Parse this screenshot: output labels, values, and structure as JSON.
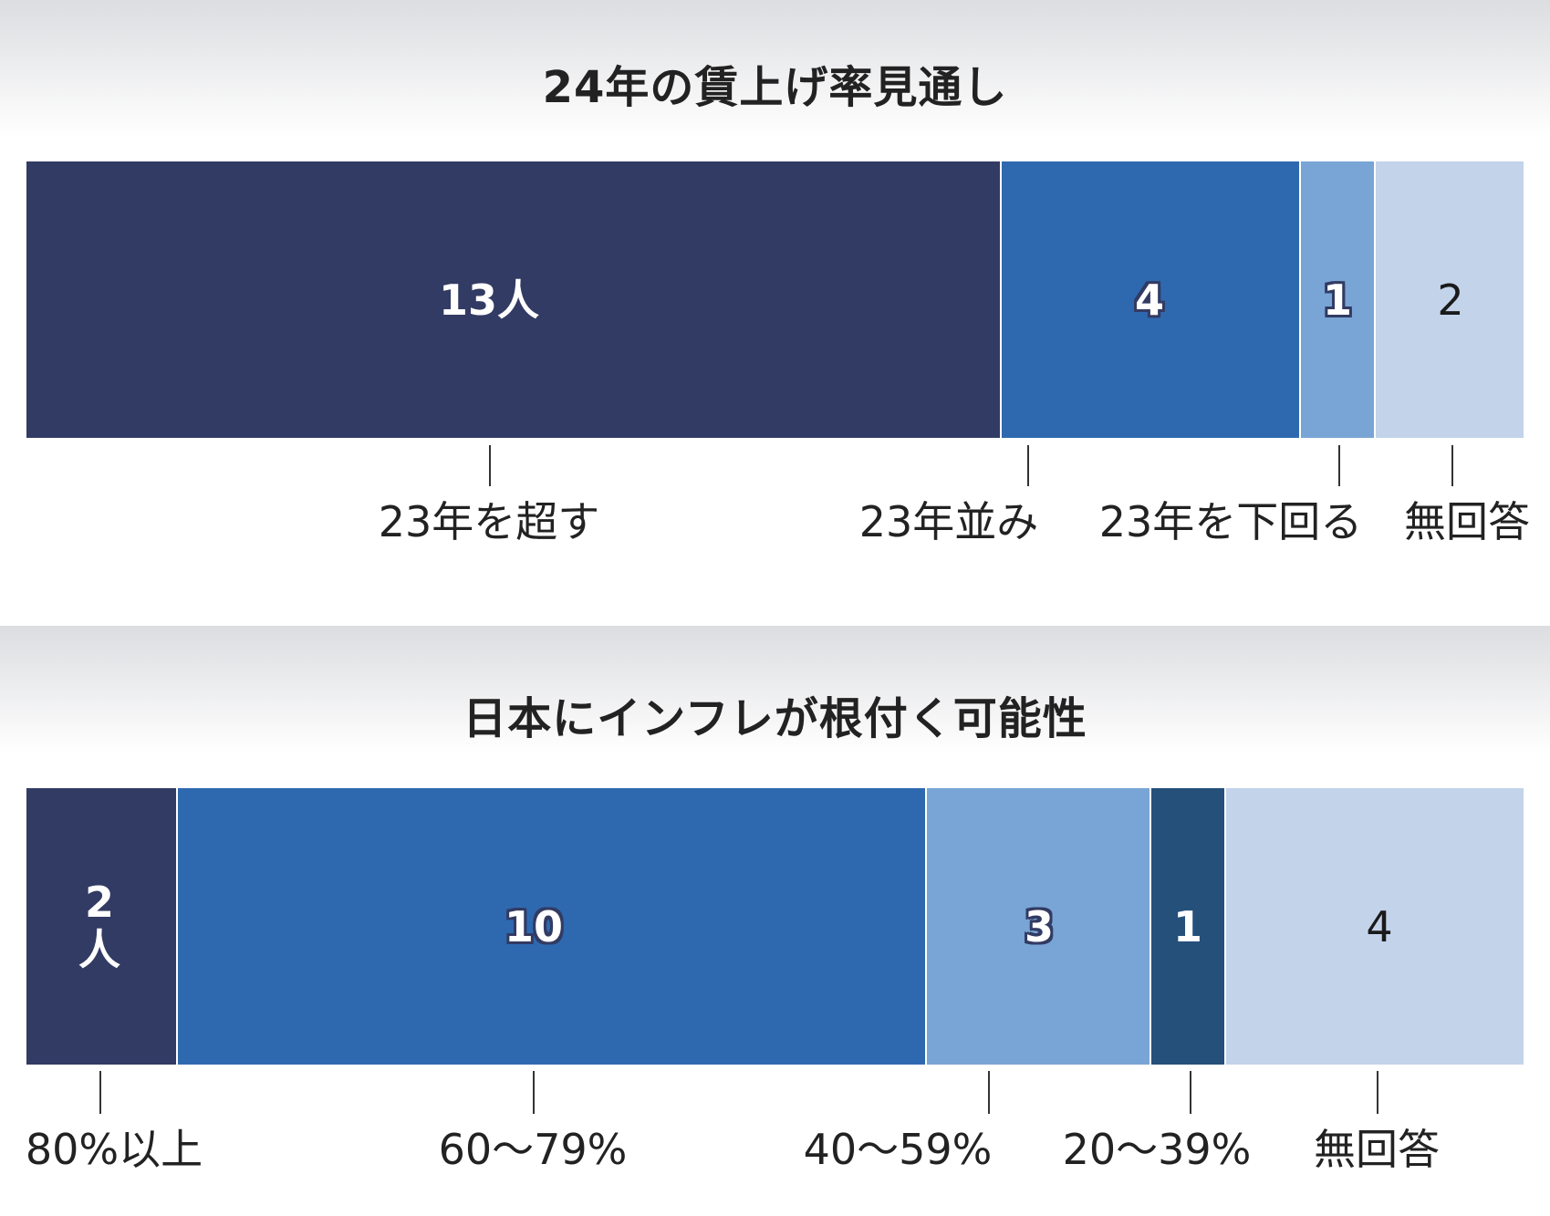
{
  "chart_data": [
    {
      "type": "bar",
      "orientation": "horizontal-stacked-100",
      "title": "24年の賃上げ率見通し",
      "unit": "人",
      "categories": [
        "23年を超す",
        "23年並み",
        "23年を下回る",
        "無回答"
      ],
      "values": [
        13,
        4,
        1,
        2
      ],
      "value_labels": [
        "13人",
        "4",
        "1",
        "2"
      ],
      "colors": [
        "#323b63",
        "#2e69b0",
        "#78a5d5",
        "#c2d3ea"
      ]
    },
    {
      "type": "bar",
      "orientation": "horizontal-stacked-100",
      "title": "日本にインフレが根付く可能性",
      "unit": "人",
      "categories": [
        "80%以上",
        "60～79%",
        "40～59%",
        "20～39%",
        "無回答"
      ],
      "values": [
        2,
        10,
        3,
        1,
        4
      ],
      "value_labels": [
        "2人",
        "10",
        "3",
        "1",
        "4"
      ],
      "colors": [
        "#323b63",
        "#2e69b0",
        "#78a5d5",
        "#25507a",
        "#c2d3ea"
      ]
    }
  ]
}
